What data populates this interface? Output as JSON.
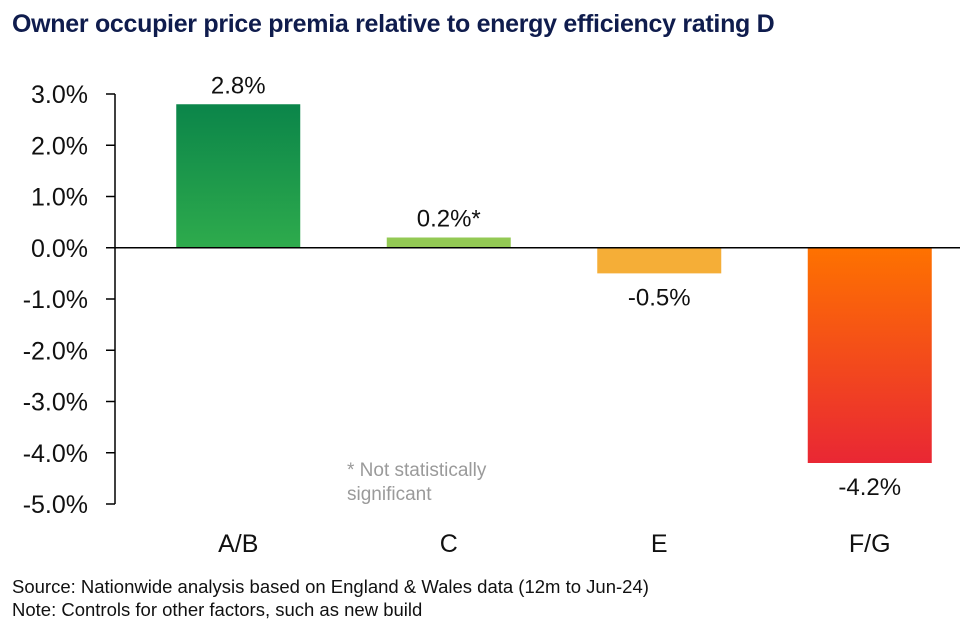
{
  "chart_data": {
    "type": "bar",
    "title": "Owner occupier price premia relative to energy efficiency rating D",
    "categories": [
      "A/B",
      "C",
      "E",
      "F/G"
    ],
    "values": [
      2.8,
      0.2,
      -0.5,
      -4.2
    ],
    "value_labels": [
      "2.8%",
      "0.2%*",
      "-0.5%",
      "-4.2%"
    ],
    "unit": "%",
    "xlabel": "",
    "ylabel": "",
    "ylim": [
      -5.0,
      3.0
    ],
    "yticks": [
      3.0,
      2.0,
      1.0,
      0.0,
      -1.0,
      -2.0,
      -3.0,
      -4.0,
      -5.0
    ],
    "ytick_labels": [
      "3.0%",
      "2.0%",
      "1.0%",
      "0.0%",
      "-1.0%",
      "-2.0%",
      "-3.0%",
      "-4.0%",
      "-5.0%"
    ],
    "grid": false,
    "legend": "none",
    "bar_colors": [
      {
        "top": "#0b854a",
        "bottom": "#2eab4c"
      },
      {
        "top": "#93c954",
        "bottom": "#93c954"
      },
      {
        "top": "#f5ae37",
        "bottom": "#f5ae37"
      },
      {
        "top": "#fe7200",
        "bottom": "#e92734"
      }
    ],
    "annotation": [
      "* Not statistically",
      "significant"
    ]
  },
  "footer": {
    "source": "Source: Nationwide analysis based on England & Wales data (12m to Jun-24)",
    "note": "Note: Controls for other factors, such as new build"
  }
}
